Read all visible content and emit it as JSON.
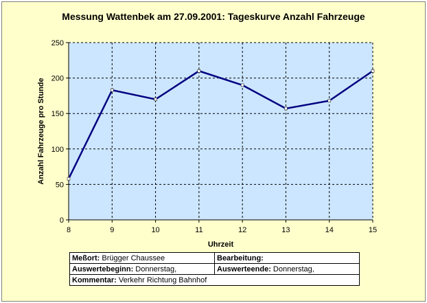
{
  "chart_data": {
    "type": "line",
    "title": "Messung Wattenbek am 27.09.2001: Tageskurve Anzahl Fahrzeuge",
    "xlabel": "Uhrzeit",
    "ylabel": "Anzahl Fahrzeuge pro Stunde",
    "x": [
      8,
      9,
      10,
      11,
      12,
      13,
      14,
      15
    ],
    "xticks": [
      "8",
      "9",
      "10",
      "11",
      "12",
      "13",
      "14",
      "15"
    ],
    "series": [
      {
        "values": [
          58,
          183,
          170,
          210,
          190,
          157,
          168,
          210
        ]
      }
    ],
    "xlim": [
      8,
      15
    ],
    "ylim": [
      0,
      250
    ],
    "yticks": [
      "0",
      "50",
      "100",
      "150",
      "200",
      "250"
    ],
    "grid": true,
    "plot_bg": "#cce6ff",
    "line_color": "#000080"
  },
  "info": {
    "messort_label": "Meßort:",
    "messort_value": "Brügger Chaussee",
    "bearbeitung_label": "Bearbeitung:",
    "bearbeitung_value": "",
    "auswertebeginn_label": "Auswertebeginn:",
    "auswertebeginn_value": "Donnerstag,",
    "auswerteende_label": "Auswerteende:",
    "auswerteende_value": "Donnerstag,",
    "kommentar_label": "Kommentar:",
    "kommentar_value": "Verkehr Richtung Bahnhof"
  }
}
